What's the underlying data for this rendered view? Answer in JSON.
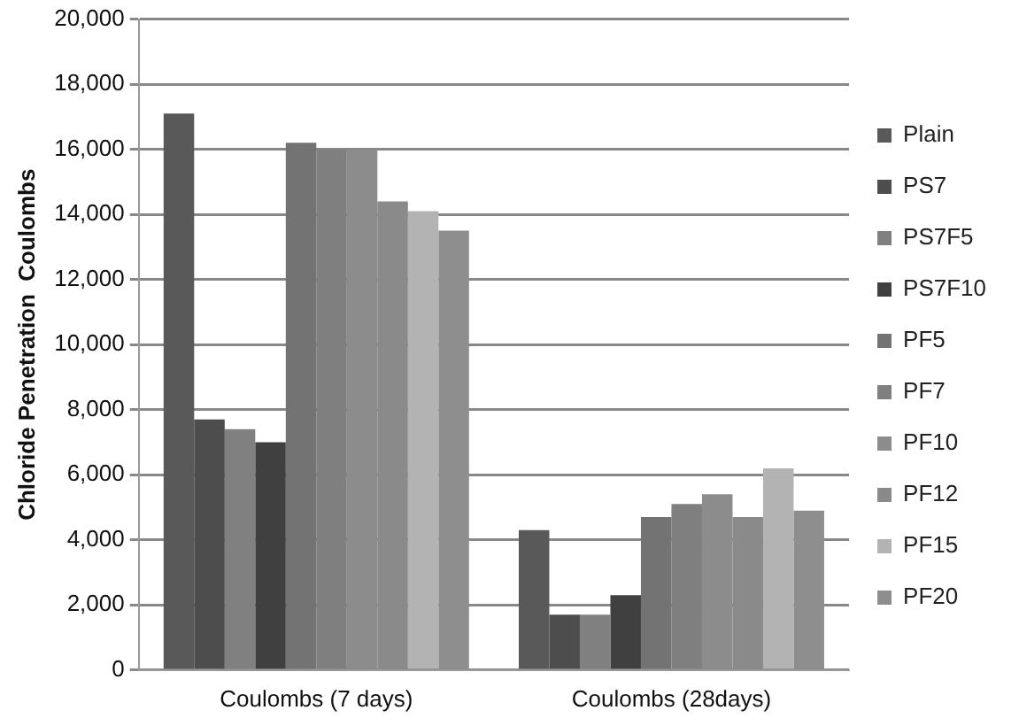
{
  "chart_data": {
    "type": "bar",
    "ylabel": "Chloride Penetration  Coulombs",
    "categories": [
      "Coulombs (7 days)",
      "Coulombs (28days)"
    ],
    "series": [
      {
        "name": "Plain",
        "color": "#595959",
        "values": [
          17100,
          4300
        ]
      },
      {
        "name": "PS7",
        "color": "#4d4d4d",
        "values": [
          7700,
          1700
        ]
      },
      {
        "name": "PS7F5",
        "color": "#808080",
        "values": [
          7400,
          1700
        ]
      },
      {
        "name": "PS7F10",
        "color": "#404040",
        "values": [
          7000,
          2300
        ]
      },
      {
        "name": "PF5",
        "color": "#737373",
        "values": [
          16200,
          4700
        ]
      },
      {
        "name": "PF7",
        "color": "#7f7f7f",
        "values": [
          16000,
          5100
        ]
      },
      {
        "name": "PF10",
        "color": "#8c8c8c",
        "values": [
          16000,
          5400
        ]
      },
      {
        "name": "PF12",
        "color": "#8a8a8a",
        "values": [
          14400,
          4700
        ]
      },
      {
        "name": "PF15",
        "color": "#b3b3b3",
        "values": [
          14100,
          6200
        ]
      },
      {
        "name": "PF20",
        "color": "#8e8e8e",
        "values": [
          13500,
          4900
        ]
      }
    ],
    "ylim": [
      0,
      20000
    ],
    "yticks": [
      {
        "value": 0,
        "label": "0"
      },
      {
        "value": 2000,
        "label": "2,000"
      },
      {
        "value": 4000,
        "label": "4,000"
      },
      {
        "value": 6000,
        "label": "6,000"
      },
      {
        "value": 8000,
        "label": "8,000"
      },
      {
        "value": 10000,
        "label": "10,000"
      },
      {
        "value": 12000,
        "label": "12,000"
      },
      {
        "value": 14000,
        "label": "14,000"
      },
      {
        "value": 16000,
        "label": "16,000"
      },
      {
        "value": 18000,
        "label": "18,000"
      },
      {
        "value": 20000,
        "label": "20,000"
      }
    ],
    "grid": "y",
    "legend": "right"
  }
}
